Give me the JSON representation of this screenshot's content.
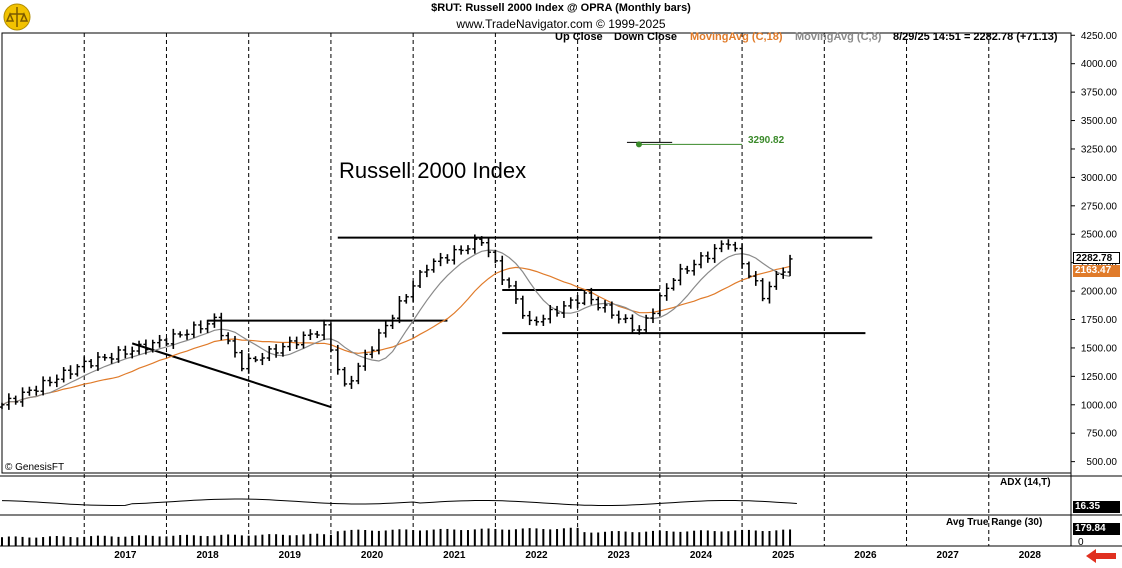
{
  "header": {
    "title_line": "$RUT:  Russell 2000 Index @ OPRA  (Monthly bars)",
    "source_line": "www.TradeNavigator.com © 1999-2025"
  },
  "legend": {
    "up_close": "Up Close",
    "down_close": "Down Close",
    "ma18": "MovingAvg (C,18)",
    "ma8": "MovingAvg (C,8)",
    "quote": "8/29/25 14:51 = 2282.78 (+71.13)"
  },
  "annotation": {
    "big_label": "Russell 2000 Index",
    "target_value": "3290.82"
  },
  "price_boxes": {
    "last_price": "2282.78",
    "ma_value": "2163.47"
  },
  "copyright": "© GenesisFT",
  "adx_panel": {
    "label": "ADX (14,T)",
    "value": "16.35"
  },
  "atr_panel": {
    "label": "Avg True Range (30)",
    "value": "179.84",
    "zero": "0"
  },
  "colors": {
    "ma18": "#e07b2a",
    "ma8": "#8a8a8a",
    "target": "#3a8a2a",
    "bars": "#000000",
    "last_price_box": "#ffffff",
    "ma_box": "#e07b2a",
    "arrow": "#e03020"
  },
  "chart_data": {
    "type": "ohlc",
    "title": "$RUT:  Russell 2000 Index @ OPRA  (Monthly bars)",
    "y_ticks": [
      "500.00",
      "750.00",
      "1000.00",
      "1250.00",
      "1500.00",
      "1750.00",
      "2000.00",
      "2250.00",
      "2500.00",
      "2750.00",
      "3000.00",
      "3250.00",
      "3500.00",
      "3750.00",
      "4000.00",
      "4250.00"
    ],
    "x_ticks": [
      "2017",
      "2018",
      "2019",
      "2020",
      "2021",
      "2022",
      "2023",
      "2024",
      "2025",
      "2026",
      "2027",
      "2028"
    ],
    "ylim": [
      400,
      4270
    ],
    "x_start": 2016.0,
    "x_end": 2029.0,
    "grid": "vertical dashed at year starts",
    "last_close": 2282.78,
    "change": 71.13,
    "target": 3290.82,
    "key_points": [
      {
        "date": "2016-01",
        "close": 1000
      },
      {
        "date": "2017-01",
        "close": 1360
      },
      {
        "date": "2018-01",
        "close": 1570
      },
      {
        "date": "2018-08",
        "close": 1740
      },
      {
        "date": "2018-12",
        "close": 1350
      },
      {
        "date": "2019-12",
        "close": 1670
      },
      {
        "date": "2020-03",
        "close": 1150
      },
      {
        "date": "2020-12",
        "close": 1970
      },
      {
        "date": "2021-03",
        "close": 2220
      },
      {
        "date": "2021-11",
        "close": 2450
      },
      {
        "date": "2022-06",
        "close": 1710
      },
      {
        "date": "2023-02",
        "close": 1960
      },
      {
        "date": "2023-10",
        "close": 1650
      },
      {
        "date": "2024-03",
        "close": 2120
      },
      {
        "date": "2024-11",
        "close": 2440
      },
      {
        "date": "2025-04",
        "close": 1960
      },
      {
        "date": "2025-08",
        "close": 2282.78
      }
    ],
    "trendlines": [
      {
        "from": [
          "2020-02",
          2470
        ],
        "to": [
          "2026-08",
          2470
        ]
      },
      {
        "from": [
          "2022-02",
          1630
        ],
        "to": [
          "2026-07",
          1630
        ]
      },
      {
        "from": [
          "2018-07",
          1740
        ],
        "to": [
          "2021-06",
          1740
        ]
      },
      {
        "from": [
          "2017-08",
          1540
        ],
        "to": [
          "2020-01",
          980
        ]
      },
      {
        "from": [
          "2022-02",
          2010
        ],
        "to": [
          "2024-01",
          2010
        ]
      }
    ],
    "adx_value": 16.35,
    "atr_value": 179.84
  }
}
